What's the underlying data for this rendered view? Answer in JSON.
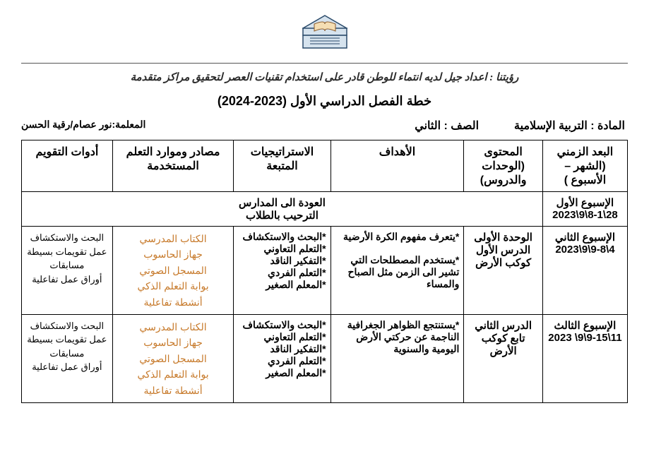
{
  "logo": {
    "stroke": "#2a4a6a",
    "fill": "#d6e3ee",
    "book_fill": "#f5deb3",
    "book_stroke": "#8a5a2a"
  },
  "vision_text": "رؤيتنا : اعداد جيل لديه انتماء للوطن قادر على استخدام تقنيات العصر لتحقيق مراكز متقدمة",
  "plan_title": "خطة الفصل الدراسي الأول   (2023-2024)",
  "info": {
    "subject_label": "المادة :  التربية الإسلامية",
    "grade_label": "الصف : الثاني",
    "teacher_label": "المعلمة:نور عصام/رقية الحسن"
  },
  "headers": {
    "time": "البعد الزمني (الشهر – الأسبوع )",
    "content": "المحتوى (الوحدات والدروس)",
    "goals": "الأهداف",
    "strategies": "الاستراتيجيات المتبعة",
    "resources": "مصادر وموارد التعلم المستخدمة",
    "evaluation": "أدوات التقويم"
  },
  "rows": [
    {
      "time": "الإسبوع الأول\n28\\8-1\\9\\2023",
      "merged_text": "العودة الى المدارس\nالترحيب بالطلاب"
    },
    {
      "time": "الإسبوع الثاني\n4\\9-8\\9\\2023",
      "content": "الوحدة الأولى\nالدرس الأول\nكوكب الأرض",
      "goals": "*يتعرف مفهوم الكرة الأرضية\n\n*يستخدم المصطلحات التي تشير الى الزمن مثل الصباح والمساء",
      "strategies": "*البحث والاستكشاف\n*التعلم التعاوني\n*التفكير الناقد\n*التعلم الفردي\n*المعلم الصغير",
      "resources": "الكتاب المدرسي\nجهاز الحاسوب\nالمسجل الصوتي\nبوابة التعلم الذكي\nأنشطة تفاعلية",
      "evaluation": "البحث والاستكشاف\nعمل تقويمات بسيطة\nمسابقات\nأوراق عمل تفاعلية"
    },
    {
      "time": "الإسبوع الثالث\n11\\9-15\\9\\ 2023",
      "content": "الدرس الثاني\nتابع كوكب الأرض",
      "goals": "*يستنتجع الظواهر الجغرافية الناجمة عن حركتي الأرض اليومية والسنوية",
      "strategies": "*البحث والاستكشاف\n*التعلم التعاوني\n*التفكير الناقد\n*التعلم الفردي\n*المعلم الصغير",
      "resources": "الكتاب المدرسي\nجهاز الحاسوب\nالمسجل الصوتي\nبوابة التعلم الذكي\nأنشطة تفاعلية",
      "evaluation": "البحث والاستكشاف\nعمل تقويمات بسيطة\nمسابقات\nأوراق عمل تفاعلية"
    }
  ],
  "colors": {
    "resource_text": "#c77a2b",
    "text": "#000000",
    "border": "#000000"
  }
}
